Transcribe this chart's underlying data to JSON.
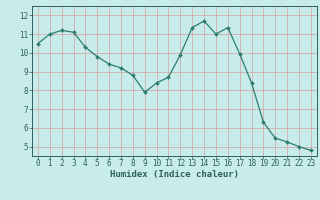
{
  "x": [
    0,
    1,
    2,
    3,
    4,
    5,
    6,
    7,
    8,
    9,
    10,
    11,
    12,
    13,
    14,
    15,
    16,
    17,
    18,
    19,
    20,
    21,
    22,
    23
  ],
  "y": [
    10.5,
    11.0,
    11.2,
    11.1,
    10.3,
    9.8,
    9.4,
    9.2,
    8.8,
    7.9,
    8.4,
    8.7,
    9.9,
    11.35,
    11.7,
    11.0,
    11.35,
    9.95,
    8.4,
    6.3,
    5.45,
    5.25,
    5.0,
    4.8
  ],
  "line_color": "#2e7d6e",
  "marker": "D",
  "marker_size": 2.0,
  "bg_color": "#c8ecea",
  "grid_color": "#b0d8d4",
  "axis_color": "#2e6060",
  "xlabel": "Humidex (Indice chaleur)",
  "xlim": [
    -0.5,
    23.5
  ],
  "ylim": [
    4.5,
    12.5
  ],
  "yticks": [
    5,
    6,
    7,
    8,
    9,
    10,
    11,
    12
  ],
  "xticks": [
    0,
    1,
    2,
    3,
    4,
    5,
    6,
    7,
    8,
    9,
    10,
    11,
    12,
    13,
    14,
    15,
    16,
    17,
    18,
    19,
    20,
    21,
    22,
    23
  ],
  "tick_fontsize": 5.5,
  "xlabel_fontsize": 6.5
}
